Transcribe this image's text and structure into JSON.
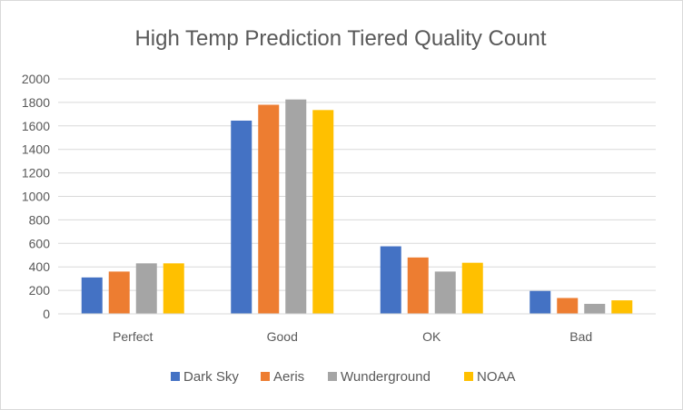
{
  "chart_data": {
    "type": "bar",
    "title": "High Temp Prediction Tiered Quality Count",
    "xlabel": "",
    "ylabel": "",
    "categories": [
      "Perfect",
      "Good",
      "OK",
      "Bad"
    ],
    "ylim": [
      0,
      2000
    ],
    "yticks": [
      0,
      200,
      400,
      600,
      800,
      1000,
      1200,
      1400,
      1600,
      1800,
      2000
    ],
    "grid": true,
    "legend_position": "bottom",
    "series": [
      {
        "name": "Dark Sky",
        "color": "#4472c4",
        "values": [
          310,
          1645,
          575,
          195
        ]
      },
      {
        "name": "Aeris",
        "color": "#ed7d31",
        "values": [
          360,
          1780,
          480,
          135
        ]
      },
      {
        "name": "Wunderground",
        "color": "#a5a5a5",
        "values": [
          430,
          1825,
          360,
          85
        ]
      },
      {
        "name": "NOAA",
        "color": "#ffc000",
        "values": [
          430,
          1735,
          435,
          115
        ]
      }
    ]
  }
}
